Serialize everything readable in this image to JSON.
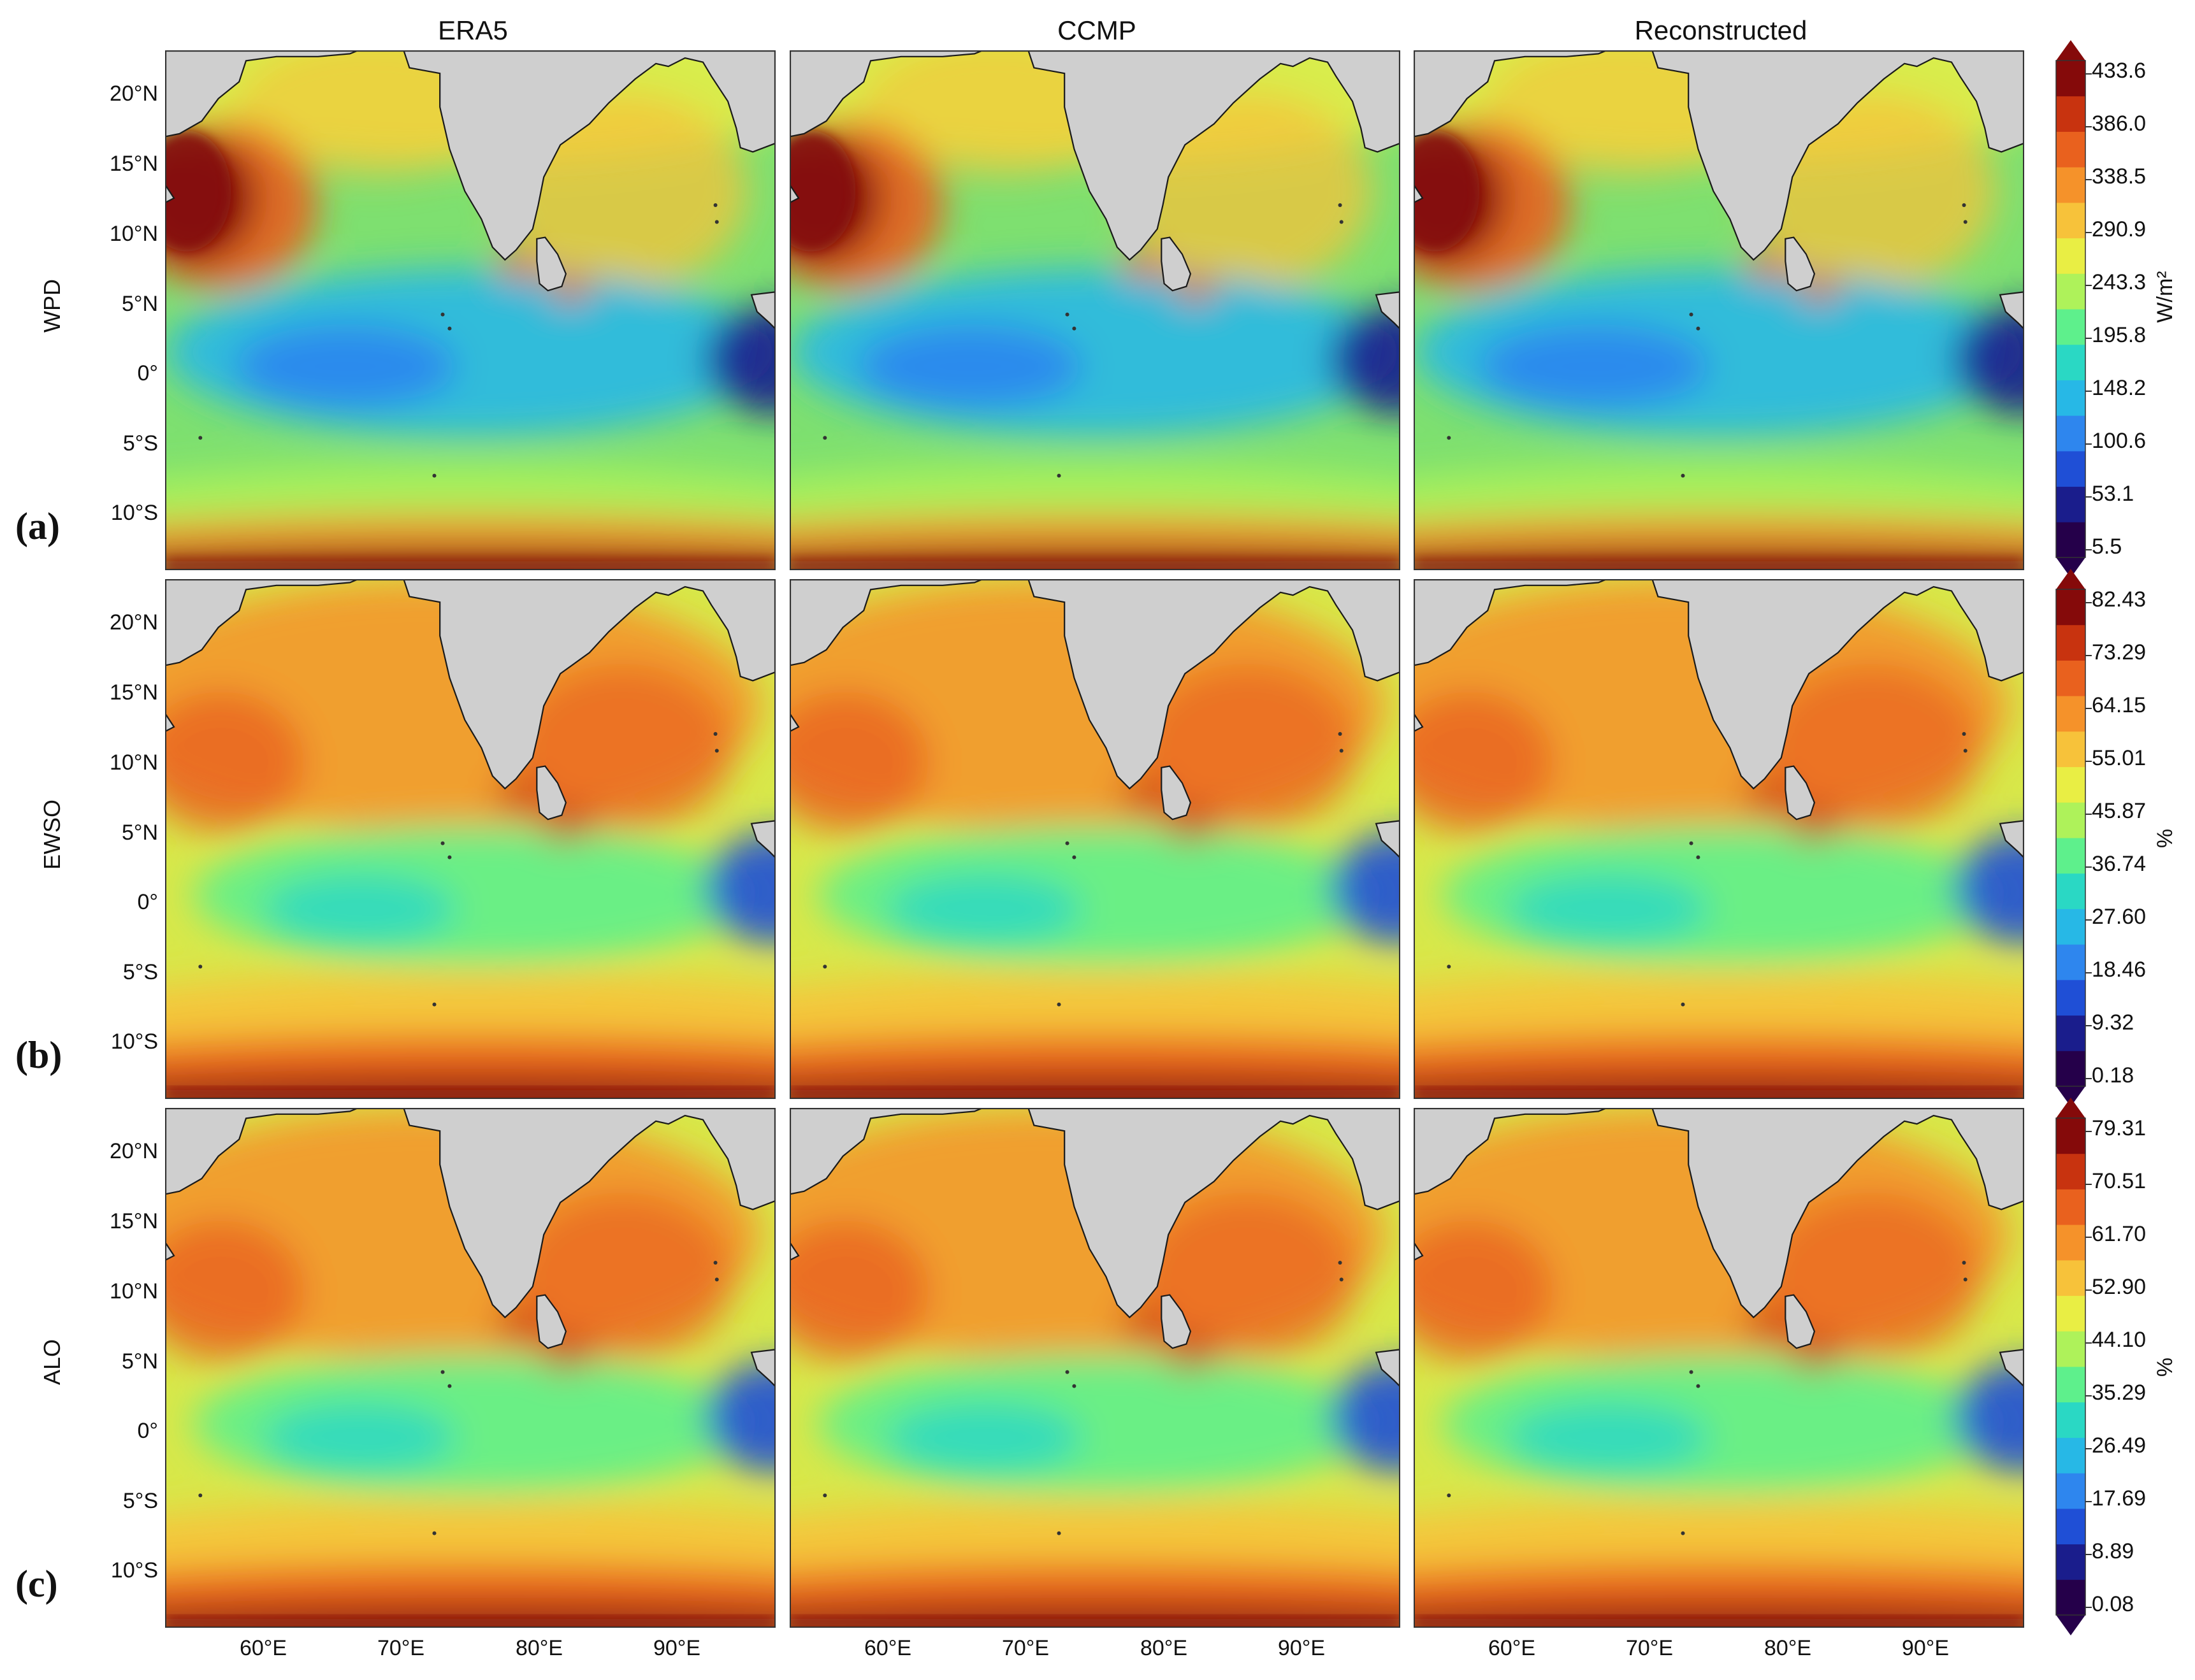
{
  "columns": [
    "ERA5",
    "CCMP",
    "Reconstructed"
  ],
  "rows": [
    {
      "tag": "(a)",
      "variable": "WPD",
      "unit": "W/m²",
      "colorbar_ticks": [
        "5.5",
        "53.1",
        "100.6",
        "148.2",
        "195.8",
        "243.3",
        "290.9",
        "338.5",
        "386.0",
        "433.6"
      ]
    },
    {
      "tag": "(b)",
      "variable": "EWSO",
      "unit": "%",
      "colorbar_ticks": [
        "0.18",
        "9.32",
        "18.46",
        "27.60",
        "36.74",
        "45.87",
        "55.01",
        "64.15",
        "73.29",
        "82.43"
      ]
    },
    {
      "tag": "(c)",
      "variable": "ALO",
      "unit": "%",
      "colorbar_ticks": [
        "0.08",
        "8.89",
        "17.69",
        "26.49",
        "35.29",
        "44.10",
        "52.90",
        "61.70",
        "70.51",
        "79.31"
      ]
    }
  ],
  "lat_labels": [
    "20°N",
    "15°N",
    "10°N",
    "5°N",
    "0°",
    "5°S",
    "10°S"
  ],
  "lon_labels": [
    "60°E",
    "70°E",
    "80°E",
    "90°E"
  ],
  "map": {
    "region": "Northern Indian Ocean",
    "lon_range": [
      53,
      97
    ],
    "lat_range": [
      -14,
      23
    ],
    "land_color": "#cfcfcf",
    "colormap": "jet (contour-filled)"
  }
}
